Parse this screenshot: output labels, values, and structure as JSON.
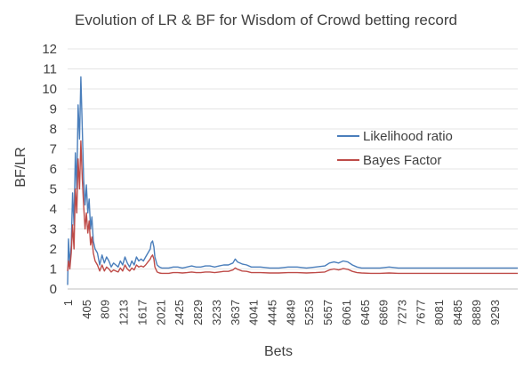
{
  "chart_data": {
    "type": "line",
    "title": "Evolution of LR & BF for Wisdom of Crowd betting record",
    "xlabel": "Bets",
    "ylabel": "BF/LR",
    "ylim": [
      0,
      12
    ],
    "yticks": [
      0,
      1,
      2,
      3,
      4,
      5,
      6,
      7,
      8,
      9,
      10,
      11,
      12
    ],
    "xlim": [
      1,
      9800
    ],
    "xticks": [
      1,
      405,
      809,
      1213,
      1617,
      2021,
      2425,
      2829,
      3233,
      3637,
      4041,
      4445,
      4849,
      5253,
      5657,
      6061,
      6465,
      6869,
      7273,
      7677,
      8081,
      8485,
      8889,
      9293
    ],
    "grid": true,
    "legend_position": "right",
    "series": [
      {
        "name": "Likelihood ratio",
        "color": "#4a7ebb",
        "x": [
          1,
          20,
          50,
          80,
          110,
          140,
          170,
          200,
          230,
          260,
          290,
          320,
          350,
          380,
          410,
          440,
          470,
          500,
          530,
          560,
          600,
          650,
          700,
          750,
          800,
          850,
          900,
          950,
          1000,
          1050,
          1100,
          1150,
          1200,
          1250,
          1300,
          1350,
          1400,
          1450,
          1500,
          1550,
          1600,
          1650,
          1700,
          1750,
          1800,
          1820,
          1850,
          1880,
          1900,
          1950,
          2000,
          2050,
          2100,
          2200,
          2300,
          2400,
          2500,
          2600,
          2700,
          2800,
          2900,
          3000,
          3100,
          3200,
          3300,
          3400,
          3500,
          3600,
          3650,
          3700,
          3800,
          3900,
          4000,
          4200,
          4400,
          4600,
          4800,
          5000,
          5200,
          5400,
          5600,
          5700,
          5800,
          5900,
          6000,
          6100,
          6200,
          6300,
          6400,
          6600,
          6800,
          7000,
          7200,
          7400,
          7600,
          7800,
          8000,
          8200,
          8400,
          8600,
          8800,
          9000,
          9200,
          9400,
          9600,
          9800
        ],
        "y": [
          0.2,
          2.5,
          1.2,
          2.2,
          4.8,
          3.2,
          6.8,
          5.0,
          9.2,
          7.5,
          10.6,
          8.0,
          5.5,
          4.2,
          5.2,
          3.8,
          4.5,
          3.0,
          3.6,
          2.4,
          2.0,
          1.8,
          1.2,
          1.7,
          1.3,
          1.6,
          1.4,
          1.1,
          1.3,
          1.2,
          1.1,
          1.4,
          1.2,
          1.6,
          1.3,
          1.1,
          1.4,
          1.2,
          1.6,
          1.4,
          1.5,
          1.4,
          1.6,
          1.8,
          2.0,
          2.3,
          2.4,
          2.1,
          1.6,
          1.2,
          1.1,
          1.05,
          1.05,
          1.05,
          1.1,
          1.1,
          1.05,
          1.1,
          1.15,
          1.1,
          1.1,
          1.15,
          1.15,
          1.1,
          1.15,
          1.2,
          1.2,
          1.3,
          1.5,
          1.35,
          1.25,
          1.2,
          1.1,
          1.1,
          1.05,
          1.05,
          1.1,
          1.1,
          1.05,
          1.1,
          1.15,
          1.3,
          1.35,
          1.3,
          1.4,
          1.35,
          1.2,
          1.1,
          1.05,
          1.05,
          1.05,
          1.1,
          1.05,
          1.05,
          1.05,
          1.05,
          1.05,
          1.05,
          1.05,
          1.05,
          1.05,
          1.05,
          1.05,
          1.05,
          1.05,
          1.05
        ]
      },
      {
        "name": "Bayes Factor",
        "color": "#be4b48",
        "x": [
          1,
          20,
          50,
          80,
          110,
          140,
          170,
          200,
          230,
          260,
          290,
          320,
          350,
          380,
          410,
          440,
          470,
          500,
          530,
          560,
          600,
          650,
          700,
          750,
          800,
          850,
          900,
          950,
          1000,
          1050,
          1100,
          1150,
          1200,
          1250,
          1300,
          1350,
          1400,
          1450,
          1500,
          1550,
          1600,
          1650,
          1700,
          1750,
          1800,
          1820,
          1850,
          1880,
          1900,
          1950,
          2000,
          2050,
          2100,
          2200,
          2300,
          2400,
          2500,
          2600,
          2700,
          2800,
          2900,
          3000,
          3100,
          3200,
          3300,
          3400,
          3500,
          3600,
          3650,
          3700,
          3800,
          3900,
          4000,
          4200,
          4400,
          4600,
          4800,
          5000,
          5200,
          5400,
          5600,
          5700,
          5800,
          5900,
          6000,
          6100,
          6200,
          6300,
          6400,
          6600,
          6800,
          7000,
          7200,
          7400,
          7600,
          7800,
          8000,
          8200,
          8400,
          8600,
          8800,
          9000,
          9200,
          9400,
          9600,
          9800
        ],
        "y": [
          0.9,
          1.4,
          1.0,
          1.8,
          3.2,
          2.0,
          5.0,
          3.8,
          6.5,
          5.0,
          7.4,
          5.5,
          4.2,
          3.0,
          3.8,
          2.8,
          3.4,
          2.2,
          2.6,
          1.8,
          1.4,
          1.2,
          0.9,
          1.2,
          0.9,
          1.1,
          1.0,
          0.85,
          0.95,
          0.9,
          0.85,
          1.05,
          0.9,
          1.2,
          1.0,
          0.9,
          1.05,
          0.95,
          1.2,
          1.1,
          1.15,
          1.1,
          1.2,
          1.35,
          1.5,
          1.6,
          1.7,
          1.5,
          1.1,
          0.85,
          0.8,
          0.78,
          0.78,
          0.78,
          0.82,
          0.82,
          0.8,
          0.82,
          0.85,
          0.82,
          0.82,
          0.85,
          0.85,
          0.82,
          0.85,
          0.88,
          0.88,
          0.95,
          1.05,
          0.98,
          0.9,
          0.88,
          0.82,
          0.82,
          0.8,
          0.8,
          0.82,
          0.82,
          0.8,
          0.82,
          0.85,
          0.95,
          1.0,
          0.95,
          1.02,
          0.98,
          0.88,
          0.82,
          0.8,
          0.78,
          0.78,
          0.8,
          0.78,
          0.78,
          0.78,
          0.78,
          0.78,
          0.78,
          0.78,
          0.78,
          0.78,
          0.78,
          0.78,
          0.78,
          0.78,
          0.78
        ]
      }
    ]
  }
}
